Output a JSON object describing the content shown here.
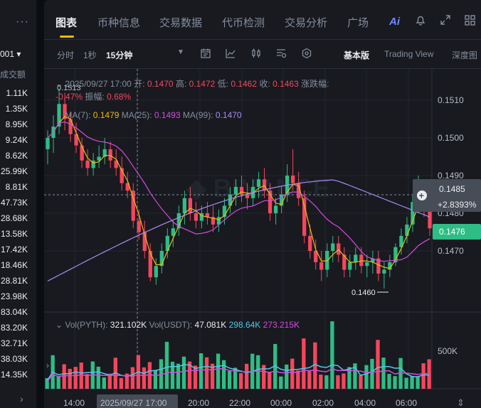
{
  "left_panel": {
    "menu_icon": "more-dots-icon",
    "selector": "001 ▾",
    "header": "成交额",
    "volumes": [
      "1.11K",
      "1.35K",
      "8.95K",
      "9.24K",
      "8.62K",
      "25.99K",
      "8.81K",
      "47.73K",
      "28.68K",
      "13.58K",
      "17.42K",
      "18.46K",
      "28.81K",
      "23.98K",
      "83.04K",
      "83.20K",
      "32.71K",
      "38.03K",
      "14.35K"
    ],
    "expand_icon": "chevron-right-icon"
  },
  "tabs": [
    {
      "label": "图表",
      "active": true
    },
    {
      "label": "币种信息"
    },
    {
      "label": "交易数据"
    },
    {
      "label": "代币检测"
    },
    {
      "label": "交易分析"
    },
    {
      "label": "广场"
    }
  ],
  "header_icons": {
    "ai": "Ai",
    "bell": "bell-icon",
    "expand": "expand-icon",
    "grid": "grid-icon"
  },
  "toolbar": {
    "intervals": [
      "分时",
      "1秒",
      "15分钟"
    ],
    "active_interval": "15分钟",
    "icons": [
      "dropdown-icon",
      "calendar-icon",
      "indicator-icon",
      "candle-type-icon",
      "template-icon",
      "settings-icon"
    ],
    "views": [
      "基本版",
      "Trading View",
      "深度图"
    ],
    "active_view": "基本版"
  },
  "ohlc": {
    "date": "2025/09/27 17:00",
    "open_label": "开:",
    "open": "0.1470",
    "high_label": "高:",
    "high": "0.1472",
    "low_label": "低:",
    "low": "0.1462",
    "close_label": "收:",
    "close": "0.1463",
    "change_label": "涨跌幅:",
    "change": "-0.47%",
    "amp_label": "振幅:",
    "amp": "0.68%"
  },
  "ma": {
    "ma7_label": "MA(7):",
    "ma7": "0.1479",
    "ma25_label": "MA(25):",
    "ma25": "0.1493",
    "ma99_label": "MA(99):",
    "ma99": "0.1470"
  },
  "price_tag": {
    "price": "0.1485",
    "change": "+2.8393%",
    "current": "0.1476"
  },
  "volume_header": {
    "pyth_label": "Vol(PYTH):",
    "pyth": "321.102K",
    "usdt_label": "Vol(USDT):",
    "usdt": "47.081K",
    "v1": "298.64K",
    "v2": "273.215K"
  },
  "annotations": {
    "high": "0.1513",
    "low": "0.1460"
  },
  "colors": {
    "up": "#2ebd85",
    "down": "#f6465d",
    "ma7": "#f0b90b",
    "ma25": "#d74adf",
    "ma99": "#a98cf6",
    "accent": "#f0b90b"
  },
  "chart_data": {
    "type": "candlestick",
    "y_ticks": [
      "0.1510",
      "0.1500",
      "0.1490",
      "0.1480",
      "0.1470"
    ],
    "vol_tick": "500K",
    "x_ticks": [
      "14:00",
      "2025/09/27 17:00",
      "20:00",
      "22:00",
      "00:00",
      "02:00",
      "04:00",
      "06:00"
    ],
    "ylim": [
      0.146,
      0.1515
    ],
    "candles": [
      [
        0.1497,
        0.1502,
        0.1493,
        0.15
      ],
      [
        0.15,
        0.1506,
        0.1496,
        0.1503
      ],
      [
        0.1503,
        0.1513,
        0.1501,
        0.1509
      ],
      [
        0.1509,
        0.1512,
        0.1502,
        0.1505
      ],
      [
        0.1505,
        0.1507,
        0.1499,
        0.1501
      ],
      [
        0.1501,
        0.1504,
        0.1496,
        0.1498
      ],
      [
        0.1498,
        0.15,
        0.1492,
        0.1494
      ],
      [
        0.1494,
        0.1497,
        0.149,
        0.1492
      ],
      [
        0.1492,
        0.1496,
        0.149,
        0.1494
      ],
      [
        0.1494,
        0.1498,
        0.1492,
        0.1495
      ],
      [
        0.1495,
        0.15,
        0.1493,
        0.1497
      ],
      [
        0.1497,
        0.1499,
        0.1492,
        0.1494
      ],
      [
        0.1494,
        0.1497,
        0.149,
        0.1492
      ],
      [
        0.1492,
        0.1495,
        0.1486,
        0.1488
      ],
      [
        0.1488,
        0.1491,
        0.1484,
        0.1486
      ],
      [
        0.1486,
        0.1488,
        0.1476,
        0.1478
      ],
      [
        0.1478,
        0.1481,
        0.1473,
        0.1475
      ],
      [
        0.1475,
        0.1478,
        0.1468,
        0.147
      ],
      [
        0.147,
        0.1472,
        0.1462,
        0.1463
      ],
      [
        0.1463,
        0.1468,
        0.1461,
        0.1466
      ],
      [
        0.1466,
        0.1472,
        0.1464,
        0.147
      ],
      [
        0.147,
        0.1476,
        0.1468,
        0.1474
      ],
      [
        0.1474,
        0.1478,
        0.1471,
        0.1476
      ],
      [
        0.1476,
        0.1482,
        0.1474,
        0.148
      ],
      [
        0.148,
        0.1486,
        0.1477,
        0.1484
      ],
      [
        0.1484,
        0.1487,
        0.1478,
        0.148
      ],
      [
        0.148,
        0.1483,
        0.1476,
        0.1478
      ],
      [
        0.1478,
        0.1482,
        0.1476,
        0.148
      ],
      [
        0.148,
        0.1483,
        0.1477,
        0.1479
      ],
      [
        0.1479,
        0.1482,
        0.1475,
        0.1477
      ],
      [
        0.1477,
        0.1481,
        0.1475,
        0.1479
      ],
      [
        0.1479,
        0.1484,
        0.1477,
        0.1482
      ],
      [
        0.1482,
        0.1487,
        0.148,
        0.1485
      ],
      [
        0.1485,
        0.1489,
        0.1482,
        0.1487
      ],
      [
        0.1487,
        0.149,
        0.1483,
        0.1485
      ],
      [
        0.1485,
        0.1488,
        0.1481,
        0.1484
      ],
      [
        0.1484,
        0.1489,
        0.1482,
        0.1487
      ],
      [
        0.1487,
        0.1491,
        0.1484,
        0.1489
      ],
      [
        0.1489,
        0.1492,
        0.1484,
        0.1486
      ],
      [
        0.1486,
        0.1488,
        0.1478,
        0.148
      ],
      [
        0.148,
        0.1484,
        0.1477,
        0.1482
      ],
      [
        0.1482,
        0.1487,
        0.148,
        0.1485
      ],
      [
        0.1485,
        0.1493,
        0.1483,
        0.149
      ],
      [
        0.149,
        0.1497,
        0.1486,
        0.1488
      ],
      [
        0.1488,
        0.1491,
        0.1482,
        0.1484
      ],
      [
        0.1484,
        0.1486,
        0.1472,
        0.1474
      ],
      [
        0.1474,
        0.1477,
        0.1468,
        0.147
      ],
      [
        0.147,
        0.1473,
        0.1465,
        0.1467
      ],
      [
        0.1467,
        0.147,
        0.1462,
        0.1465
      ],
      [
        0.1465,
        0.1472,
        0.1463,
        0.147
      ],
      [
        0.147,
        0.1474,
        0.1467,
        0.1472
      ],
      [
        0.1472,
        0.1474,
        0.1467,
        0.1469
      ],
      [
        0.1469,
        0.1471,
        0.1463,
        0.1465
      ],
      [
        0.1465,
        0.1469,
        0.1463,
        0.1467
      ],
      [
        0.1467,
        0.1471,
        0.1465,
        0.1469
      ],
      [
        0.1469,
        0.1471,
        0.1464,
        0.1466
      ],
      [
        0.1466,
        0.1469,
        0.1463,
        0.1467
      ],
      [
        0.1467,
        0.147,
        0.1464,
        0.1468
      ],
      [
        0.1468,
        0.147,
        0.1462,
        0.1464
      ],
      [
        0.1464,
        0.1467,
        0.146,
        0.1465
      ],
      [
        0.1465,
        0.1469,
        0.1463,
        0.1467
      ],
      [
        0.1467,
        0.1472,
        0.1466,
        0.1471
      ],
      [
        0.1471,
        0.1476,
        0.1469,
        0.1474
      ],
      [
        0.1474,
        0.1479,
        0.1472,
        0.1477
      ],
      [
        0.1477,
        0.1485,
        0.1475,
        0.1483
      ],
      [
        0.1483,
        0.149,
        0.148,
        0.1486
      ],
      [
        0.1486,
        0.1488,
        0.1479,
        0.1481
      ],
      [
        0.1481,
        0.1484,
        0.1474,
        0.1476
      ]
    ]
  }
}
